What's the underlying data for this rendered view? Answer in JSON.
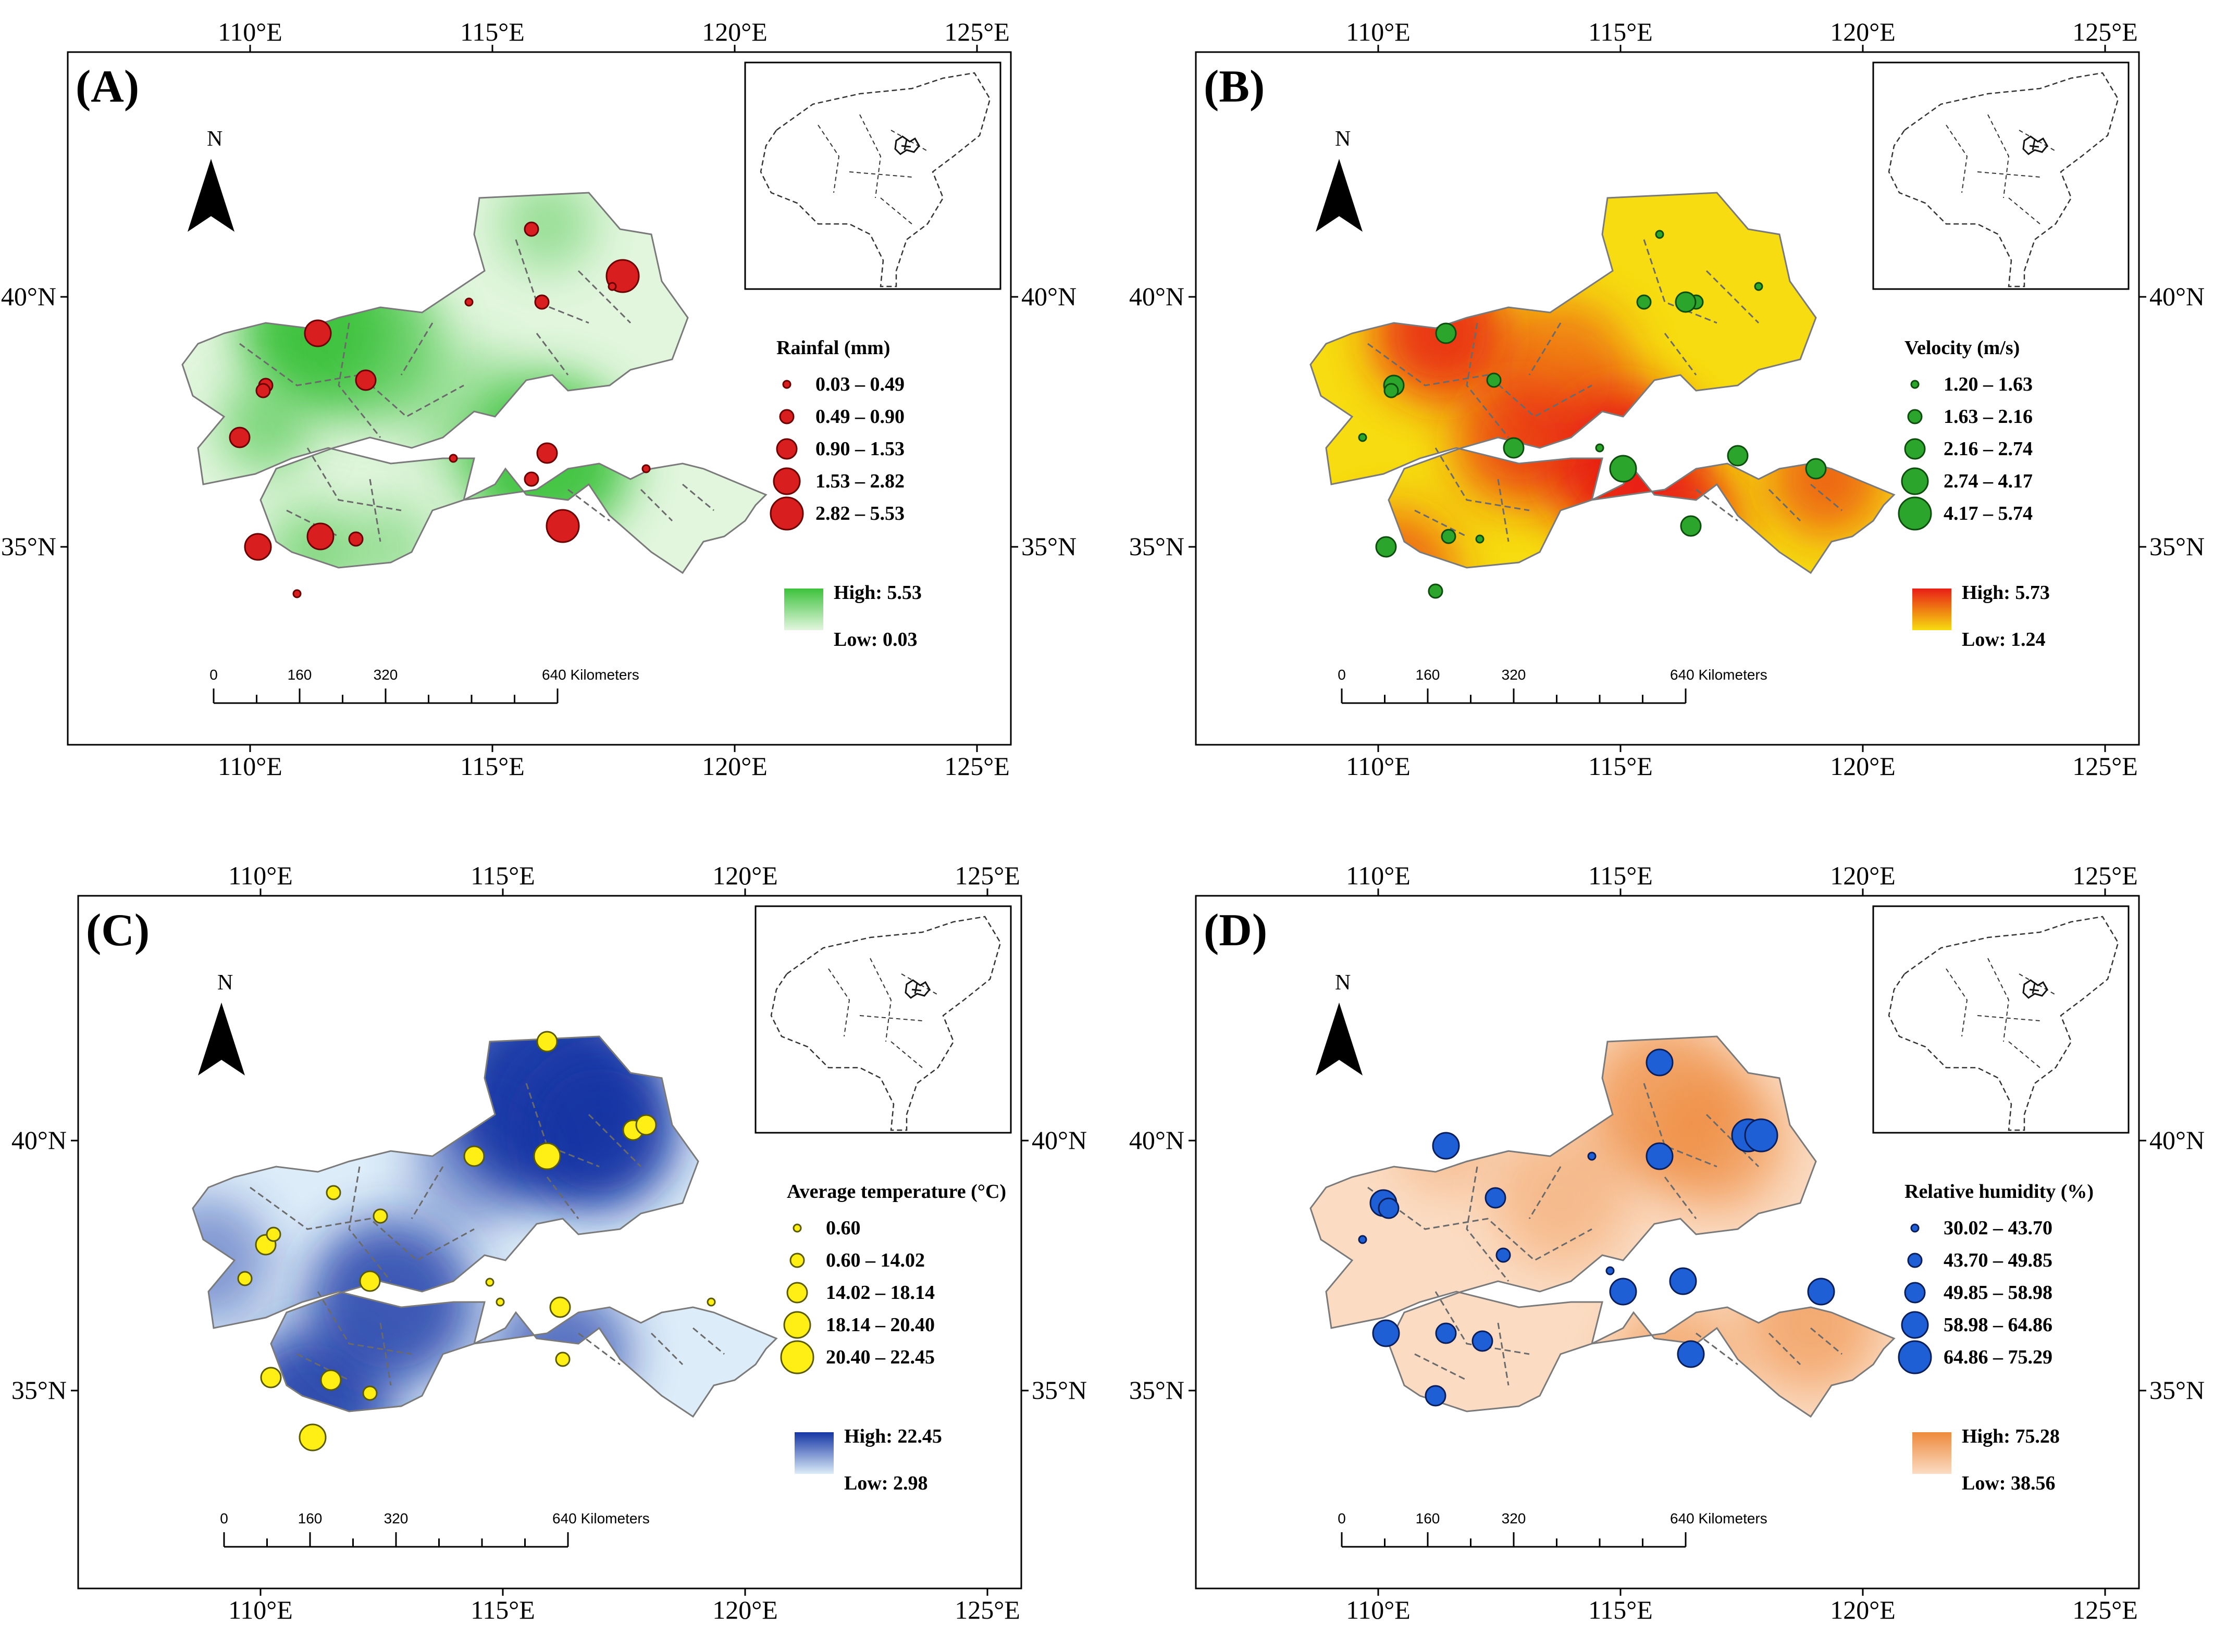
{
  "figure": {
    "common": {
      "lon_ticks": [
        "110°E",
        "115°E",
        "120°E",
        "125°E"
      ],
      "lat_ticks": [
        "40°N",
        "35°N"
      ],
      "north_label": "N",
      "scale": {
        "t0": "0",
        "t1": "160",
        "t2": "320",
        "t3": "640 Kilometers"
      }
    },
    "panels": [
      {
        "label": "(A)",
        "legend_title": "Rainfal (mm)",
        "classes": [
          "0.03 – 0.49",
          "0.49 – 0.90",
          "0.90 – 1.53",
          "1.53 – 2.82",
          "2.82 – 5.53"
        ],
        "high": "High: 5.53",
        "low": "Low: 0.03",
        "colors": {
          "fill_low": "#e2f6de",
          "fill_high": "#3dc23c",
          "marker": "#d81e1e",
          "marker_stroke": "#6a0000"
        }
      },
      {
        "label": "(B)",
        "legend_title": "Velocity (m/s)",
        "classes": [
          "1.20 – 1.63",
          "1.63 – 2.16",
          "2.16 – 2.74",
          "2.74 – 4.17",
          "4.17 – 5.74"
        ],
        "high": "High: 5.73",
        "low": "Low: 1.24",
        "colors": {
          "fill_low": "#f6dc10",
          "fill_high": "#e81e16",
          "marker": "#2ca52c",
          "marker_stroke": "#0d4d0d"
        }
      },
      {
        "label": "(C)",
        "legend_title": "Average temperature (°C)",
        "classes": [
          "0.60",
          "0.60 – 14.02",
          "14.02 – 18.14",
          "18.14 – 20.40",
          "20.40 – 22.45"
        ],
        "high": "High: 22.45",
        "low": "Low: 2.98",
        "colors": {
          "fill_low": "#dcecf8",
          "fill_high": "#1535a4",
          "marker": "#ffef14",
          "marker_stroke": "#5a5a00"
        }
      },
      {
        "label": "(D)",
        "legend_title": "Relative humidity (%)",
        "classes": [
          "30.02 – 43.70",
          "43.70 – 49.85",
          "49.85 – 58.98",
          "58.98 – 64.86",
          "64.86 – 75.29"
        ],
        "high": "High: 75.28",
        "low": "Low: 38.56",
        "colors": {
          "fill_low": "#fbdcc3",
          "fill_high": "#ee8a3c",
          "marker": "#1e5fd6",
          "marker_stroke": "#0a1f5a"
        }
      }
    ]
  }
}
